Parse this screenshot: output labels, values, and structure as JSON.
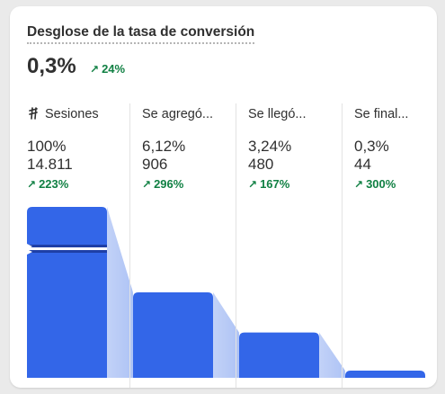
{
  "card": {
    "title": "Desglose de la tasa de conversión",
    "value": "0,3%",
    "delta": "24%"
  },
  "colors": {
    "bar": "#3366e8",
    "bar_dark": "#1e3fa6",
    "connector": "#aec3f5",
    "positive": "#108043"
  },
  "steps": [
    {
      "label": "Sesiones",
      "icon": "sessions-icon",
      "percent": "100%",
      "count": "14.811",
      "delta": "223%",
      "value": 14811
    },
    {
      "label": "Se agregó...",
      "percent": "6,12%",
      "count": "906",
      "delta": "296%",
      "value": 906
    },
    {
      "label": "Se llegó...",
      "percent": "3,24%",
      "count": "480",
      "delta": "167%",
      "value": 480
    },
    {
      "label": "Se final...",
      "percent": "0,3%",
      "count": "44",
      "delta": "300%",
      "value": 44
    }
  ]
}
